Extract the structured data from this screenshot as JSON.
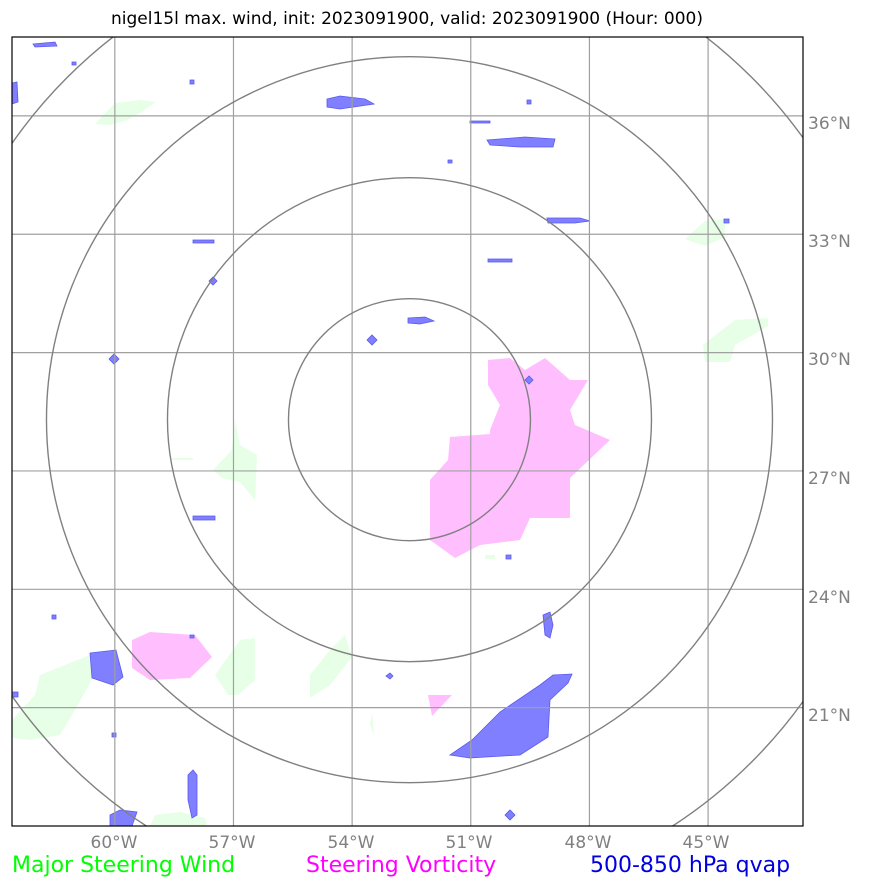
{
  "title": "nigel15l max. wind, init: 2023091900, valid: 2023091900 (Hour: 000)",
  "map": {
    "lon_labels": [
      "60°W",
      "57°W",
      "54°W",
      "51°W",
      "48°W",
      "45°W"
    ],
    "lat_labels": [
      "36°N",
      "33°N",
      "30°N",
      "27°N",
      "24°N",
      "21°N"
    ],
    "lon_values": [
      -60,
      -57,
      -54,
      -51,
      -48,
      -45
    ],
    "lat_values": [
      36,
      33,
      30,
      27,
      24,
      21
    ],
    "extent": {
      "lon_min": -62.6,
      "lon_max": -42.6,
      "lat_min": 18.0,
      "lat_max": 38.0
    },
    "storm_center": {
      "lon": -52.55,
      "lat": 28.3
    },
    "range_rings_count": 4,
    "colors": {
      "major_steering_wind": "#00ff00",
      "steering_vorticity": "#ff00ff",
      "qvap": "#0000dd",
      "wind_fill": "#e6ffe6",
      "vorticity_fill": "#ffbfff",
      "qvap_fill": "#7f7fff",
      "grid": "#a0a0a0",
      "rings": "#808080"
    }
  },
  "legend": {
    "items": [
      {
        "label": "Major Steering Wind",
        "color": "#00ff00"
      },
      {
        "label": "Steering Vorticity",
        "color": "#ff00ff"
      },
      {
        "label": "500-850 hPa qvap",
        "color": "#0000dd"
      }
    ]
  }
}
